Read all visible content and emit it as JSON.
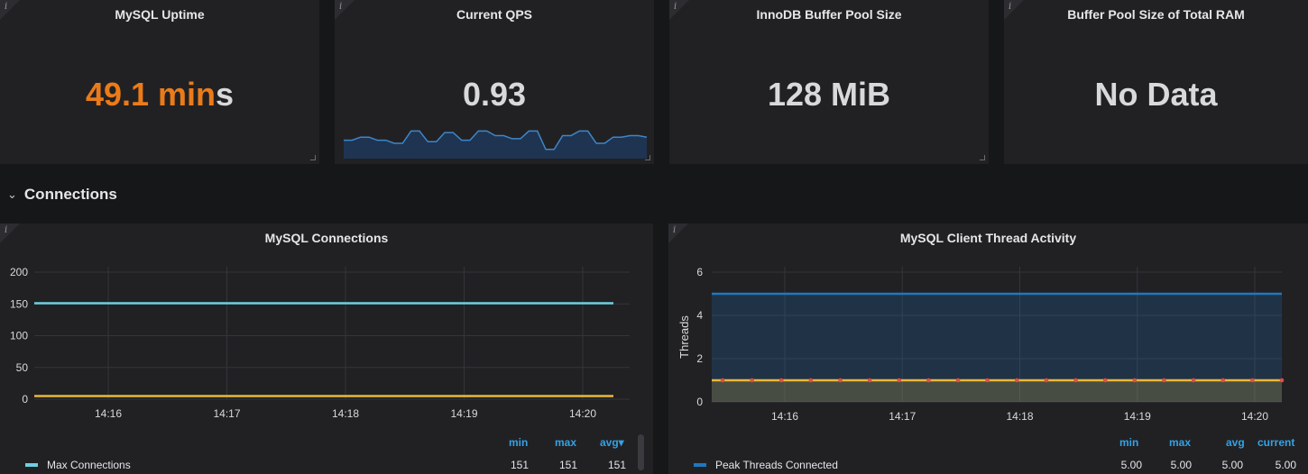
{
  "stats": [
    {
      "title": "MySQL Uptime",
      "value_number": "49.1 min",
      "value_suffix": "s"
    },
    {
      "title": "Current QPS",
      "value": "0.93"
    },
    {
      "title": "InnoDB Buffer Pool Size",
      "value": "128 MiB"
    },
    {
      "title": "Buffer Pool Size of Total RAM",
      "value": "No Data"
    }
  ],
  "info_glyph": "i",
  "row": {
    "title": "Connections"
  },
  "qps_spark": [
    0.6,
    0.6,
    0.7,
    0.7,
    0.6,
    0.6,
    0.5,
    0.5,
    0.9,
    0.9,
    0.55,
    0.55,
    0.85,
    0.85,
    0.6,
    0.6,
    0.9,
    0.9,
    0.75,
    0.75,
    0.65,
    0.65,
    0.9,
    0.9,
    0.3,
    0.3,
    0.75,
    0.75,
    0.9,
    0.9,
    0.5,
    0.5,
    0.7,
    0.7,
    0.75,
    0.75,
    0.7
  ],
  "connections": {
    "title": "MySQL Connections",
    "legend_headers": [
      "min",
      "max",
      "avg▾"
    ],
    "legend": [
      {
        "name": "Max Connections",
        "color": "#6ed0e0",
        "values": [
          "151",
          "151",
          "151"
        ]
      }
    ]
  },
  "threads": {
    "title": "MySQL Client Thread Activity",
    "legend_headers": [
      "min",
      "max",
      "avg",
      "current"
    ],
    "legend": [
      {
        "name": "Peak Threads Connected",
        "color": "#1f78c1",
        "values": [
          "5.00",
          "5.00",
          "5.00",
          "5.00"
        ]
      }
    ]
  },
  "chart_data": [
    {
      "type": "line",
      "title": "MySQL Connections",
      "x": [
        "14:16",
        "14:17",
        "14:18",
        "14:19",
        "14:20"
      ],
      "yticks": [
        0,
        50,
        100,
        150,
        200
      ],
      "ylim": [
        0,
        200
      ],
      "series": [
        {
          "name": "Max Connections",
          "color": "#6ed0e0",
          "values": [
            151,
            151,
            151,
            151,
            151
          ]
        },
        {
          "color": "#eab839",
          "values": [
            5,
            5,
            5,
            5,
            5
          ]
        }
      ],
      "grid": true
    },
    {
      "type": "area",
      "title": "MySQL Client Thread Activity",
      "ylabel": "Threads",
      "x": [
        "14:16",
        "14:17",
        "14:18",
        "14:19",
        "14:20"
      ],
      "yticks": [
        0,
        2,
        4,
        6
      ],
      "ylim": [
        0,
        6
      ],
      "series": [
        {
          "name": "Peak Threads Connected",
          "color": "#1f78c1",
          "values": [
            5,
            5,
            5,
            5,
            5
          ]
        },
        {
          "color": "#eab839",
          "values": [
            1,
            1,
            1,
            1,
            1
          ]
        }
      ],
      "grid": true
    }
  ]
}
